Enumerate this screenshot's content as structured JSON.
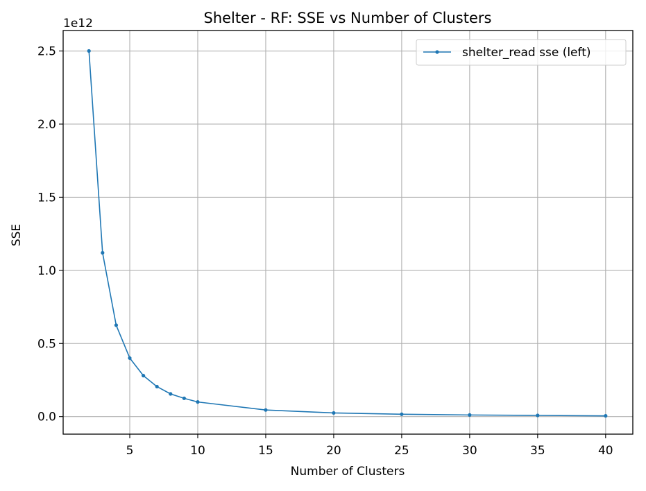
{
  "chart_data": {
    "type": "line",
    "title": "Shelter - RF: SSE vs Number of Clusters",
    "xlabel": "Number of Clusters",
    "ylabel": "SSE",
    "y_offset_text": "1e12",
    "y_scale_factor": 1000000000000,
    "xlim": [
      0.1,
      42.0
    ],
    "ylim": [
      -0.12,
      2.64
    ],
    "x_ticks": [
      5,
      10,
      15,
      20,
      25,
      30,
      35,
      40
    ],
    "x_tick_labels": [
      "5",
      "10",
      "15",
      "20",
      "25",
      "30",
      "35",
      "40"
    ],
    "y_ticks": [
      0.0,
      0.5,
      1.0,
      1.5,
      2.0,
      2.5
    ],
    "y_tick_labels": [
      "0.0",
      "0.5",
      "1.0",
      "1.5",
      "2.0",
      "2.5"
    ],
    "grid": true,
    "legend_position": "upper-right",
    "series": [
      {
        "name": "shelter_read sse (left)",
        "color": "#1f77b4",
        "x": [
          2,
          3,
          4,
          5,
          6,
          7,
          8,
          9,
          10,
          15,
          20,
          25,
          30,
          35,
          40
        ],
        "y": [
          2.5,
          1.12,
          0.625,
          0.4,
          0.28,
          0.205,
          0.155,
          0.125,
          0.1,
          0.045,
          0.025,
          0.016,
          0.011,
          0.008,
          0.005
        ]
      }
    ]
  }
}
